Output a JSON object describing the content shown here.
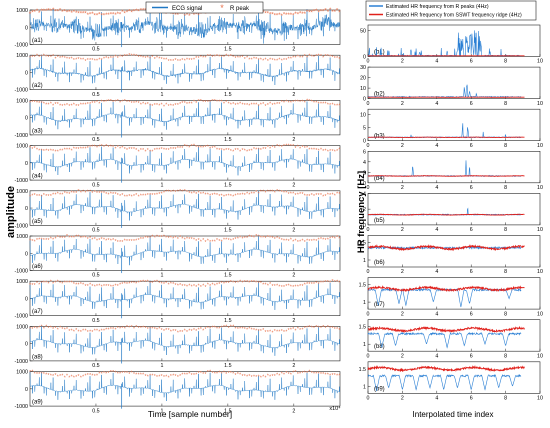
{
  "figure": {
    "left_ylabel": "amplitude",
    "right_ylabel": "HR frequency [Hz]",
    "left_xlabel": "Time [sample number]",
    "left_xexponent": "x10⁴",
    "right_xlabel": "Interpolated time index",
    "left_panel_labels": [
      "(a1)",
      "(a2)",
      "(a3)",
      "(a4)",
      "(a5)",
      "(a6)",
      "(a7)",
      "(a8)",
      "(a9)"
    ],
    "right_panel_labels": [
      "(b1)",
      "(b2)",
      "(b3)",
      "(b4)",
      "(b5)",
      "(b6)",
      "(b7)",
      "(b8)",
      "(b9)"
    ],
    "left_xticks": [
      "0.5",
      "1",
      "1.5",
      "2"
    ],
    "right_xticks": [
      "0",
      "2",
      "4",
      "6",
      "8",
      "10"
    ],
    "left_legend": [
      "ECG signal",
      "R peak"
    ],
    "right_legend": [
      "Estimated HR frequency from R peaks (4Hz)",
      "Estimated HR frequency from SSWT frequency ridge (4Hz)"
    ],
    "colors": {
      "ecg": "#1f77c4",
      "rpeak": "#e8704a",
      "hr_rpeak": "#2a7fd4",
      "hr_sswt": "#e0201b",
      "axis": "#222222"
    }
  },
  "chart_data": [
    {
      "type": "line",
      "panel": "a (ECG signal with R peaks, 9 stacked panels a1-a9)",
      "xlabel": "Time [sample number]",
      "x_exponent": "x10^4",
      "ylabel": "amplitude",
      "xlim": [
        0,
        2.35
      ],
      "ylim": [
        -1000,
        1000
      ],
      "yticks_per_panel": [
        [
          "1000",
          "0",
          "-1000"
        ],
        [
          "1000",
          "0",
          "-1000"
        ],
        [
          "1000",
          "0",
          "-1000"
        ],
        [
          "1000",
          "0",
          "-1000"
        ],
        [
          "1000",
          "0",
          "-1000"
        ],
        [
          "1000",
          "0",
          "-1000"
        ],
        [
          "1000",
          "0",
          "-1000"
        ],
        [
          "1000",
          "0",
          "-1000"
        ],
        [
          "1000",
          "0",
          "-1000"
        ]
      ],
      "series": [
        {
          "name": "ECG signal",
          "beat_period_e4": 0.0175,
          "r_amplitude": 900,
          "baseline_wander": 150
        },
        {
          "name": "R peak",
          "r_amplitude": 900
        }
      ],
      "panel_noise_levels": [
        1.0,
        0.25,
        0.18,
        0.12,
        0.1,
        0.1,
        0.1,
        0.1,
        0.1
      ],
      "grid": false,
      "legend": "top-center (panel a1)"
    },
    {
      "type": "line",
      "panel": "b (HR frequency, 9 stacked panels b1-b9)",
      "xlabel": "Interpolated time index",
      "ylabel": "HR frequency [Hz]",
      "xlim": [
        0,
        10
      ],
      "panels": [
        {
          "label": "(b1)",
          "yticks": [
            "50",
            "0"
          ],
          "ylim": [
            0,
            60
          ],
          "rpeak_series": {
            "base": 1.5,
            "spikes": [
              [
                2.5,
                18
              ],
              [
                3.0,
                12
              ],
              [
                4.6,
                12
              ],
              [
                5.2,
                20
              ],
              [
                5.5,
                45
              ],
              [
                5.75,
                55
              ],
              [
                5.9,
                50
              ],
              [
                6.05,
                45
              ],
              [
                6.2,
                35
              ],
              [
                6.5,
                18
              ],
              [
                7.1,
                12
              ],
              [
                9.3,
                8
              ]
            ]
          },
          "sswt_series": {
            "base": 1.3
          }
        },
        {
          "label": "(b2)",
          "yticks": [
            "30",
            "20",
            "10",
            "0"
          ],
          "ylim": [
            0,
            30
          ],
          "rpeak_series": {
            "base": 1.6,
            "spikes": [
              [
                5.6,
                12
              ],
              [
                5.75,
                22
              ],
              [
                5.9,
                10
              ],
              [
                6.3,
                6
              ]
            ]
          },
          "sswt_series": {
            "base": 1.3
          }
        },
        {
          "label": "(b3)",
          "yticks": [
            "10",
            "5",
            "0"
          ],
          "ylim": [
            0,
            12
          ],
          "rpeak_series": {
            "base": 1.3,
            "spikes": [
              [
                2.5,
                3.5
              ],
              [
                5.5,
                8
              ],
              [
                5.8,
                7
              ],
              [
                6.7,
                4
              ],
              [
                8.0,
                3
              ]
            ]
          },
          "sswt_series": {
            "base": 1.3
          }
        },
        {
          "label": "(b4)",
          "yticks": [
            "6",
            "4",
            "2",
            "0"
          ],
          "ylim": [
            0,
            6
          ],
          "rpeak_series": {
            "base": 1.3,
            "spikes": [
              [
                2.6,
                4.5
              ],
              [
                5.7,
                5.5
              ],
              [
                5.9,
                4
              ]
            ]
          },
          "sswt_series": {
            "base": 1.3
          }
        },
        {
          "label": "(b5)",
          "yticks": [
            "4",
            "2",
            "0"
          ],
          "ylim": [
            0,
            4
          ],
          "rpeak_series": {
            "base": 1.3,
            "spikes": [
              [
                5.8,
                3.3
              ]
            ]
          },
          "sswt_series": {
            "base": 1.3
          }
        },
        {
          "label": "(b6)",
          "yticks": [
            "1.5",
            "1"
          ],
          "ylim": [
            0.8,
            1.7
          ],
          "rpeak_series": {
            "base": 1.35,
            "spikes": []
          },
          "sswt_series": {
            "base": 1.35
          }
        },
        {
          "label": "(b7)",
          "yticks": [
            "1.5",
            "1"
          ],
          "ylim": [
            0.8,
            1.7
          ],
          "rpeak_series": {
            "base": 1.35,
            "dips": [
              [
                0.6,
                0.9
              ],
              [
                1.8,
                0.95
              ],
              [
                2.2,
                0.9
              ],
              [
                3.8,
                1.0
              ],
              [
                5.4,
                0.85
              ],
              [
                5.9,
                0.95
              ],
              [
                8.2,
                1.1
              ]
            ]
          },
          "sswt_series": {
            "base": 1.38
          }
        },
        {
          "label": "(b8)",
          "yticks": [
            "1.5",
            "1"
          ],
          "ylim": [
            0.8,
            1.7
          ],
          "rpeak_series": {
            "base": 1.3,
            "dips": [
              [
                0.8,
                0.9
              ],
              [
                1.6,
                0.95
              ],
              [
                3.4,
                1.0
              ],
              [
                4.6,
                0.9
              ],
              [
                5.6,
                0.95
              ],
              [
                6.8,
                1.0
              ],
              [
                8.0,
                0.95
              ]
            ]
          },
          "sswt_series": {
            "base": 1.42
          }
        },
        {
          "label": "(b9)",
          "yticks": [
            "1.5",
            "1"
          ],
          "ylim": [
            0.8,
            1.7
          ],
          "rpeak_series": {
            "base": 1.3,
            "dips": [
              [
                0.5,
                0.85
              ],
              [
                1.2,
                0.95
              ],
              [
                2.0,
                0.9
              ],
              [
                2.8,
                0.9
              ],
              [
                3.6,
                0.95
              ],
              [
                4.4,
                0.9
              ],
              [
                5.2,
                0.95
              ],
              [
                6.0,
                0.9
              ],
              [
                6.8,
                0.9
              ],
              [
                7.6,
                0.95
              ],
              [
                8.4,
                1.0
              ]
            ]
          },
          "sswt_series": {
            "base": 1.5
          }
        }
      ],
      "grid": false,
      "legend": "top (panel b1)"
    }
  ]
}
